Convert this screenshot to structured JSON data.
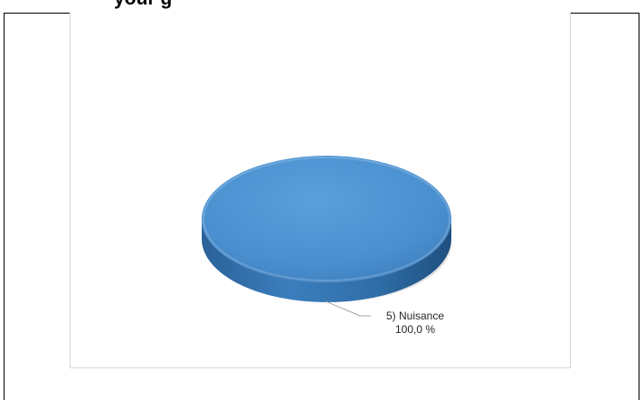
{
  "heading": "your           g",
  "chart_data": {
    "type": "pie",
    "title": "",
    "slices": [
      {
        "label": "5) Nuisance",
        "value": 100.0,
        "value_label": "100,0 %"
      }
    ],
    "legend": "none",
    "three_d": true,
    "colors": {
      "slice_top": "#4a90d0",
      "slice_side": "#2e6da6",
      "leader_line": "#a6a6a6"
    }
  }
}
